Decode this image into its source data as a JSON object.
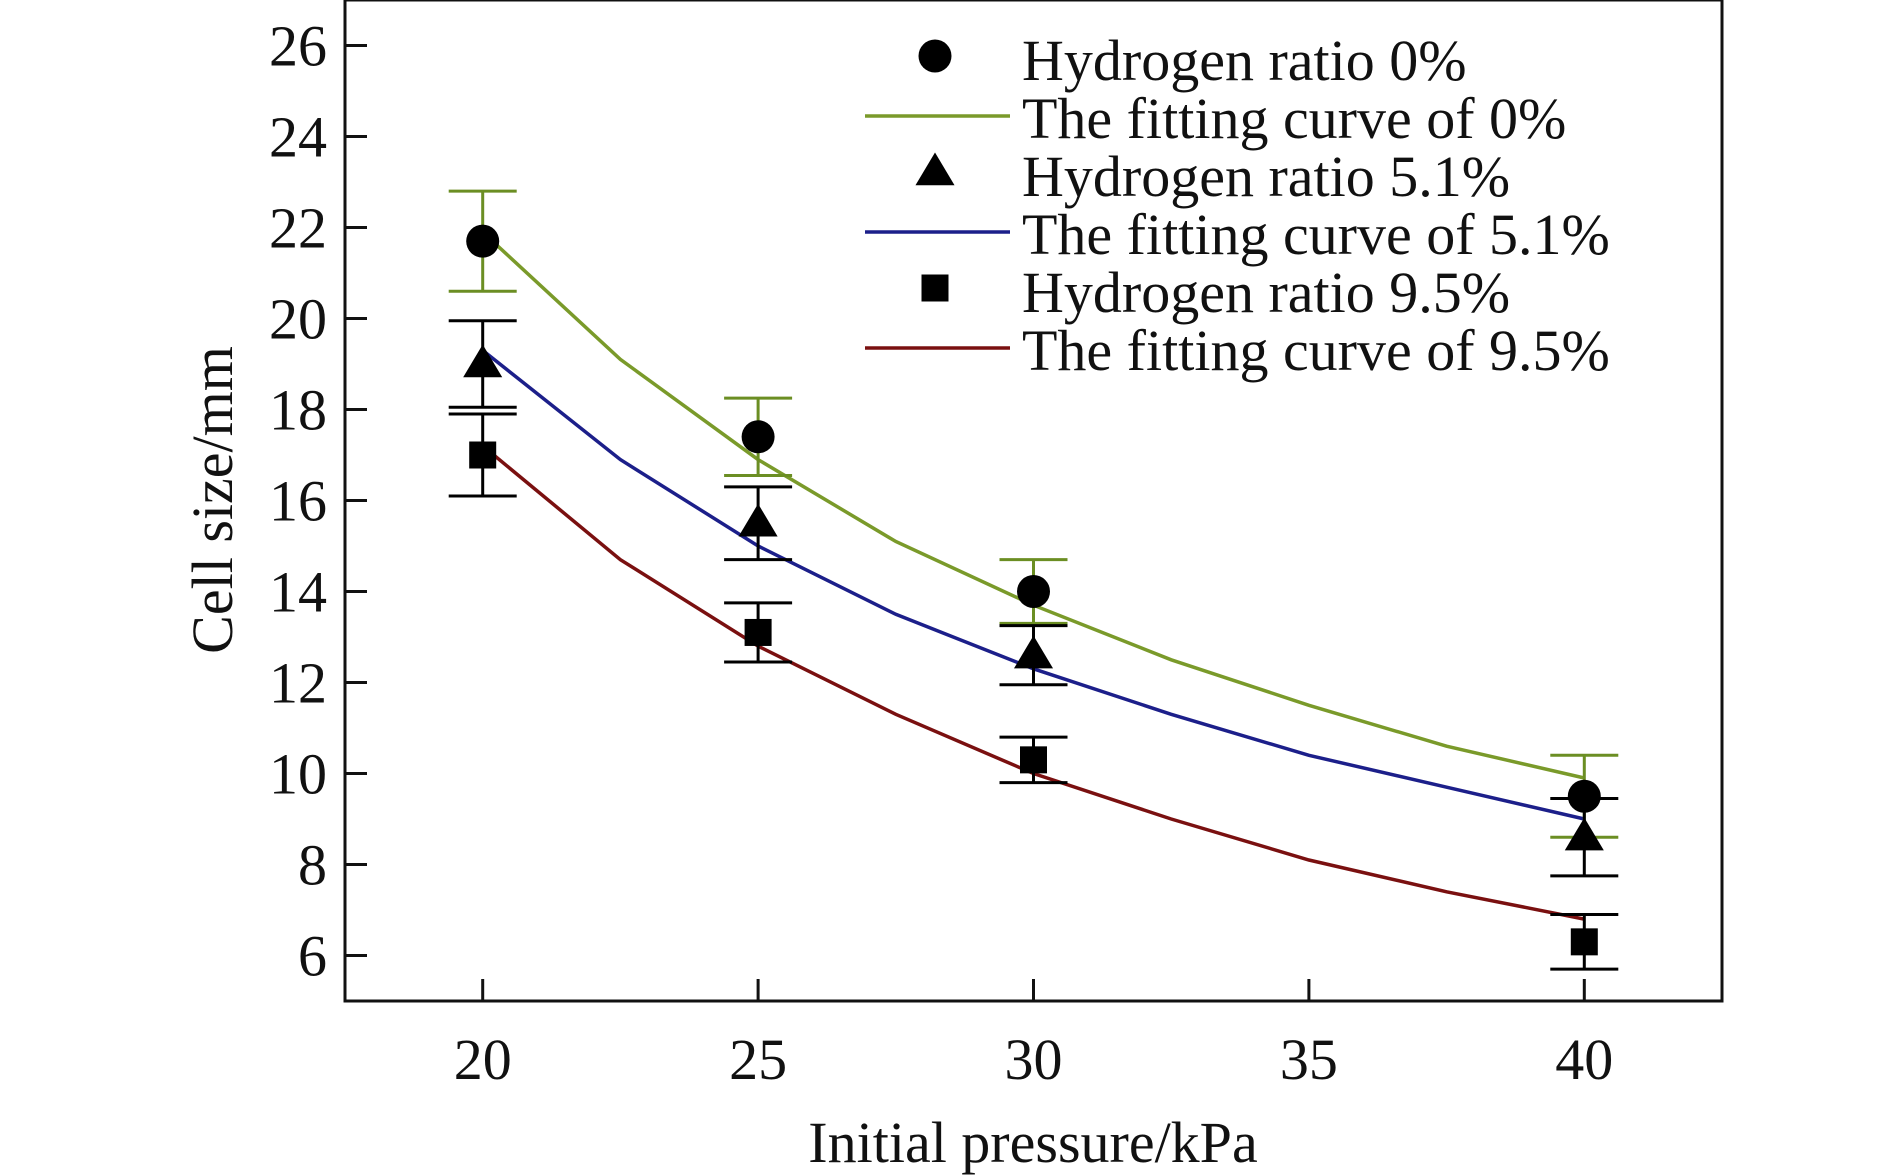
{
  "chart_data": {
    "type": "scatter",
    "title": "",
    "xlabel": "Initial pressure/kPa",
    "ylabel": "Cell size/mm",
    "xlim": [
      17.5,
      42.5
    ],
    "ylim": [
      5,
      27
    ],
    "xticks": [
      20,
      25,
      30,
      35,
      40
    ],
    "yticks": [
      6,
      8,
      10,
      12,
      14,
      16,
      18,
      20,
      22,
      24,
      26
    ],
    "grid": false,
    "legend_position": "top-right",
    "series": [
      {
        "name": "Hydrogen ratio 0%",
        "kind": "scatter",
        "marker": "circle",
        "color": "#000000",
        "x": [
          20,
          25,
          30,
          40
        ],
        "y": [
          21.7,
          17.4,
          14.0,
          9.5
        ],
        "error": [
          1.1,
          0.85,
          0.7,
          0.9
        ],
        "error_color": "#6b8e23"
      },
      {
        "name": "The fitting curve of 0%",
        "kind": "line",
        "color": "#7a9a2a",
        "x": [
          20,
          22.5,
          25,
          27.5,
          30,
          32.5,
          35,
          37.5,
          40
        ],
        "y": [
          21.9,
          19.1,
          16.9,
          15.1,
          13.7,
          12.5,
          11.5,
          10.6,
          9.9
        ]
      },
      {
        "name": "Hydrogen ratio 5.1%",
        "kind": "scatter",
        "marker": "triangle",
        "color": "#000000",
        "x": [
          20,
          25,
          30,
          40
        ],
        "y": [
          19.0,
          15.5,
          12.6,
          8.6
        ],
        "error": [
          0.95,
          0.8,
          0.65,
          0.85
        ],
        "error_color": "#000000"
      },
      {
        "name": "The fitting curve of 5.1%",
        "kind": "line",
        "color": "#1c1f8a",
        "x": [
          20,
          22.5,
          25,
          27.5,
          30,
          32.5,
          35,
          37.5,
          40
        ],
        "y": [
          19.3,
          16.9,
          15.0,
          13.5,
          12.3,
          11.3,
          10.4,
          9.7,
          9.0
        ]
      },
      {
        "name": "Hydrogen ratio 9.5%",
        "kind": "scatter",
        "marker": "square",
        "color": "#000000",
        "x": [
          20,
          25,
          30,
          40
        ],
        "y": [
          17.0,
          13.1,
          10.3,
          6.3
        ],
        "error": [
          0.9,
          0.65,
          0.5,
          0.6
        ],
        "error_color": "#000000"
      },
      {
        "name": "The fitting curve of 9.5%",
        "kind": "line",
        "color": "#7a1010",
        "x": [
          20,
          22.5,
          25,
          27.5,
          30,
          32.5,
          35,
          37.5,
          40
        ],
        "y": [
          17.2,
          14.7,
          12.8,
          11.3,
          10.0,
          9.0,
          8.1,
          7.4,
          6.8
        ]
      }
    ]
  }
}
